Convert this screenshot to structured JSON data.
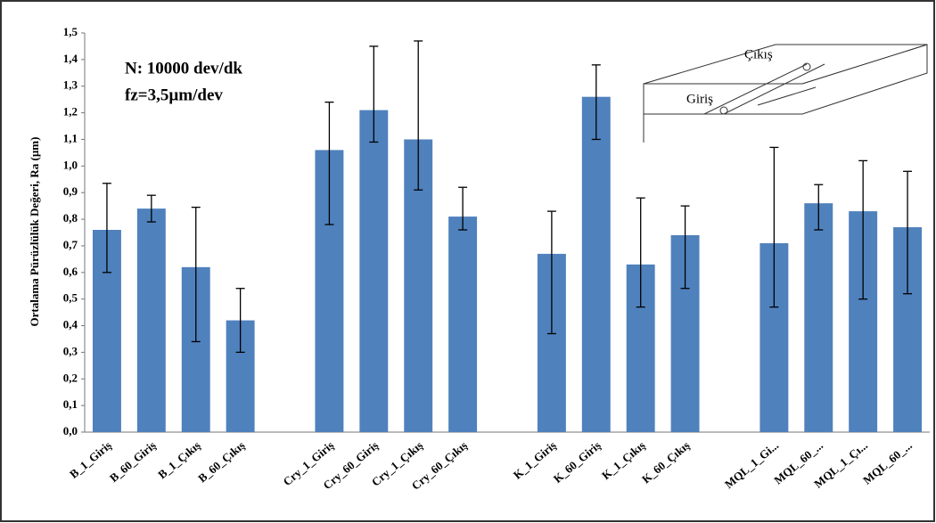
{
  "chart_data": {
    "type": "bar",
    "y_label": "Ortalama Pürüzlülük Değeri, Ra (µm)",
    "annotations": [
      "N: 10000 dev/dk",
      "fz=3,5µm/dev"
    ],
    "inset_labels": [
      "Çıkış",
      "Giriş"
    ],
    "categories": [
      "B_1_Giriş",
      "B_60_Giriş",
      "B_1_Çıkış",
      "B_60_Çıkış",
      null,
      "Cry_1_Giriş",
      "Cry_60_Giriş",
      "Cry_1_Çıkış",
      "Cry_60_Çıkış",
      null,
      "K_1_Giriş",
      "K_60_Giriş",
      "K_1_Çıkış",
      "K_60_Çıkış",
      null,
      "MQL_1_Gi...",
      "MQL_60_...",
      "MQL_1_Çı...",
      "MQL_60_..."
    ],
    "values": [
      0.76,
      0.84,
      0.62,
      0.42,
      null,
      1.06,
      1.21,
      1.1,
      0.81,
      null,
      0.67,
      1.26,
      0.63,
      0.74,
      null,
      0.71,
      0.86,
      0.83,
      0.77
    ],
    "error_plus": [
      0.175,
      0.05,
      0.225,
      0.12,
      null,
      0.18,
      0.24,
      0.37,
      0.11,
      null,
      0.16,
      0.12,
      0.25,
      0.11,
      null,
      0.36,
      0.07,
      0.19,
      0.21
    ],
    "error_minus": [
      0.16,
      0.05,
      0.28,
      0.12,
      null,
      0.28,
      0.12,
      0.19,
      0.05,
      null,
      0.3,
      0.16,
      0.16,
      0.2,
      null,
      0.24,
      0.1,
      0.33,
      0.25
    ],
    "color": "#4f81bd",
    "ylim": [
      0,
      1.5
    ],
    "yticks": [
      {
        "value": 0,
        "label": "0,0"
      },
      {
        "value": 0.1,
        "label": "0,1"
      },
      {
        "value": 0.2,
        "label": "0,2"
      },
      {
        "value": 0.3,
        "label": "0,3"
      },
      {
        "value": 0.4,
        "label": "0,4"
      },
      {
        "value": 0.5,
        "label": "0,5"
      },
      {
        "value": 0.6,
        "label": "0,6"
      },
      {
        "value": 0.7,
        "label": "0,7"
      },
      {
        "value": 0.8,
        "label": "0,8"
      },
      {
        "value": 0.9,
        "label": "0,9"
      },
      {
        "value": 1.0,
        "label": "1,0"
      },
      {
        "value": 1.1,
        "label": "1,1"
      },
      {
        "value": 1.2,
        "label": "1,2"
      },
      {
        "value": 1.3,
        "label": "1,3"
      },
      {
        "value": 1.4,
        "label": "1,4"
      },
      {
        "value": 1.5,
        "label": "1,5"
      }
    ]
  }
}
